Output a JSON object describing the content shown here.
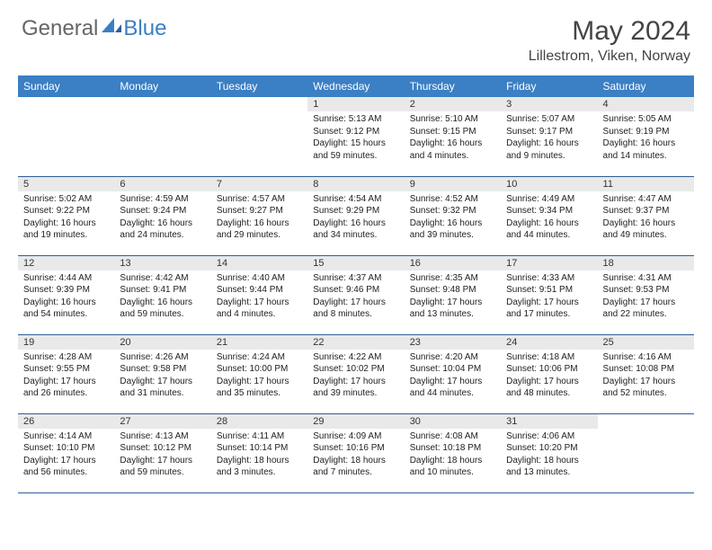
{
  "brand": {
    "part1": "General",
    "part2": "Blue"
  },
  "title": "May 2024",
  "location": "Lillestrom, Viken, Norway",
  "colors": {
    "header_bg": "#3b7fc4",
    "header_text": "#ffffff",
    "daynum_bg": "#e9e9e9",
    "row_border": "#2e5f96",
    "brand_gray": "#666666",
    "brand_blue": "#3b7fc4",
    "body_text": "#222222"
  },
  "weekdays": [
    "Sunday",
    "Monday",
    "Tuesday",
    "Wednesday",
    "Thursday",
    "Friday",
    "Saturday"
  ],
  "grid": [
    [
      null,
      null,
      null,
      {
        "n": "1",
        "sr": "5:13 AM",
        "ss": "9:12 PM",
        "dl": "15 hours and 59 minutes."
      },
      {
        "n": "2",
        "sr": "5:10 AM",
        "ss": "9:15 PM",
        "dl": "16 hours and 4 minutes."
      },
      {
        "n": "3",
        "sr": "5:07 AM",
        "ss": "9:17 PM",
        "dl": "16 hours and 9 minutes."
      },
      {
        "n": "4",
        "sr": "5:05 AM",
        "ss": "9:19 PM",
        "dl": "16 hours and 14 minutes."
      }
    ],
    [
      {
        "n": "5",
        "sr": "5:02 AM",
        "ss": "9:22 PM",
        "dl": "16 hours and 19 minutes."
      },
      {
        "n": "6",
        "sr": "4:59 AM",
        "ss": "9:24 PM",
        "dl": "16 hours and 24 minutes."
      },
      {
        "n": "7",
        "sr": "4:57 AM",
        "ss": "9:27 PM",
        "dl": "16 hours and 29 minutes."
      },
      {
        "n": "8",
        "sr": "4:54 AM",
        "ss": "9:29 PM",
        "dl": "16 hours and 34 minutes."
      },
      {
        "n": "9",
        "sr": "4:52 AM",
        "ss": "9:32 PM",
        "dl": "16 hours and 39 minutes."
      },
      {
        "n": "10",
        "sr": "4:49 AM",
        "ss": "9:34 PM",
        "dl": "16 hours and 44 minutes."
      },
      {
        "n": "11",
        "sr": "4:47 AM",
        "ss": "9:37 PM",
        "dl": "16 hours and 49 minutes."
      }
    ],
    [
      {
        "n": "12",
        "sr": "4:44 AM",
        "ss": "9:39 PM",
        "dl": "16 hours and 54 minutes."
      },
      {
        "n": "13",
        "sr": "4:42 AM",
        "ss": "9:41 PM",
        "dl": "16 hours and 59 minutes."
      },
      {
        "n": "14",
        "sr": "4:40 AM",
        "ss": "9:44 PM",
        "dl": "17 hours and 4 minutes."
      },
      {
        "n": "15",
        "sr": "4:37 AM",
        "ss": "9:46 PM",
        "dl": "17 hours and 8 minutes."
      },
      {
        "n": "16",
        "sr": "4:35 AM",
        "ss": "9:48 PM",
        "dl": "17 hours and 13 minutes."
      },
      {
        "n": "17",
        "sr": "4:33 AM",
        "ss": "9:51 PM",
        "dl": "17 hours and 17 minutes."
      },
      {
        "n": "18",
        "sr": "4:31 AM",
        "ss": "9:53 PM",
        "dl": "17 hours and 22 minutes."
      }
    ],
    [
      {
        "n": "19",
        "sr": "4:28 AM",
        "ss": "9:55 PM",
        "dl": "17 hours and 26 minutes."
      },
      {
        "n": "20",
        "sr": "4:26 AM",
        "ss": "9:58 PM",
        "dl": "17 hours and 31 minutes."
      },
      {
        "n": "21",
        "sr": "4:24 AM",
        "ss": "10:00 PM",
        "dl": "17 hours and 35 minutes."
      },
      {
        "n": "22",
        "sr": "4:22 AM",
        "ss": "10:02 PM",
        "dl": "17 hours and 39 minutes."
      },
      {
        "n": "23",
        "sr": "4:20 AM",
        "ss": "10:04 PM",
        "dl": "17 hours and 44 minutes."
      },
      {
        "n": "24",
        "sr": "4:18 AM",
        "ss": "10:06 PM",
        "dl": "17 hours and 48 minutes."
      },
      {
        "n": "25",
        "sr": "4:16 AM",
        "ss": "10:08 PM",
        "dl": "17 hours and 52 minutes."
      }
    ],
    [
      {
        "n": "26",
        "sr": "4:14 AM",
        "ss": "10:10 PM",
        "dl": "17 hours and 56 minutes."
      },
      {
        "n": "27",
        "sr": "4:13 AM",
        "ss": "10:12 PM",
        "dl": "17 hours and 59 minutes."
      },
      {
        "n": "28",
        "sr": "4:11 AM",
        "ss": "10:14 PM",
        "dl": "18 hours and 3 minutes."
      },
      {
        "n": "29",
        "sr": "4:09 AM",
        "ss": "10:16 PM",
        "dl": "18 hours and 7 minutes."
      },
      {
        "n": "30",
        "sr": "4:08 AM",
        "ss": "10:18 PM",
        "dl": "18 hours and 10 minutes."
      },
      {
        "n": "31",
        "sr": "4:06 AM",
        "ss": "10:20 PM",
        "dl": "18 hours and 13 minutes."
      },
      null
    ]
  ],
  "labels": {
    "sunrise": "Sunrise:",
    "sunset": "Sunset:",
    "daylight": "Daylight:"
  }
}
